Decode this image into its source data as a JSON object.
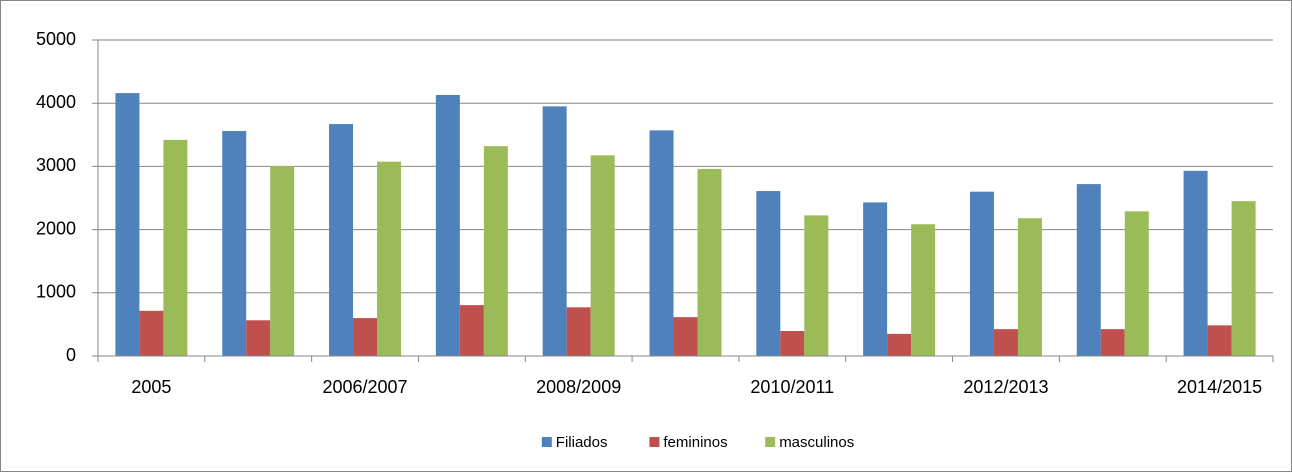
{
  "chart_data": {
    "type": "bar",
    "categories": [
      "2005",
      null,
      "2006/2007",
      null,
      "2008/2009",
      null,
      "2010/2011",
      null,
      "2012/2013",
      null,
      "2014/2015"
    ],
    "series": [
      {
        "name": "Filiados",
        "color": "#4f81bd",
        "values": [
          4160,
          3560,
          3670,
          4130,
          3950,
          3570,
          2610,
          2430,
          2600,
          2720,
          2930
        ]
      },
      {
        "name": "femininos",
        "color": "#c0504d",
        "values": [
          715,
          565,
          600,
          805,
          770,
          615,
          395,
          350,
          425,
          425,
          485
        ]
      },
      {
        "name": "masculinos",
        "color": "#9bbb59",
        "values": [
          3420,
          3005,
          3075,
          3320,
          3175,
          2960,
          2225,
          2085,
          2180,
          2290,
          2450
        ]
      }
    ],
    "ylim": [
      0,
      5000
    ],
    "yticks": [
      0,
      1000,
      2000,
      3000,
      4000,
      5000
    ],
    "grid": true,
    "legend": "bottom"
  }
}
